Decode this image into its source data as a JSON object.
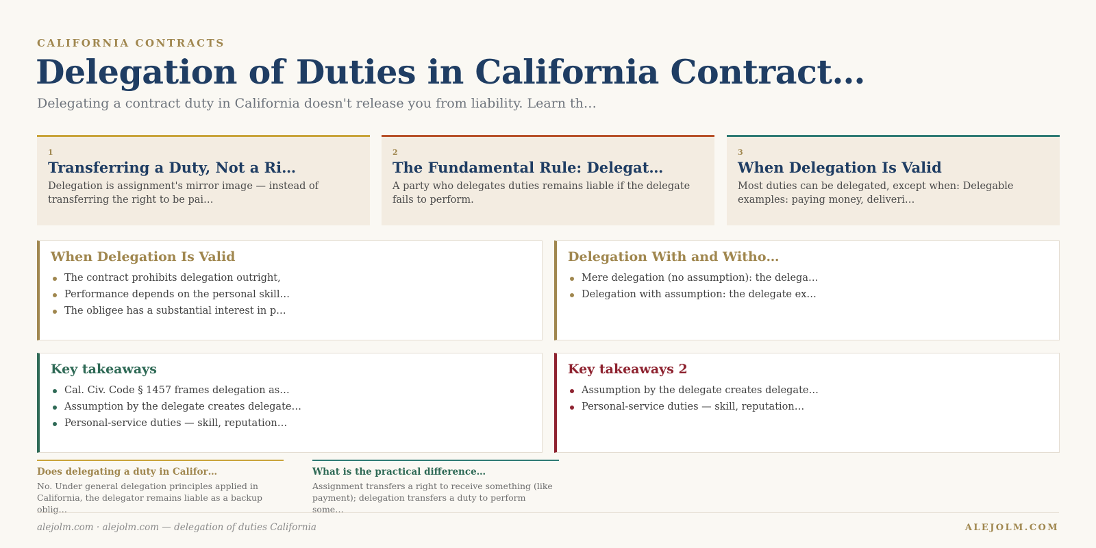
{
  "header": {
    "kicker": "CALIFORNIA CONTRACTS",
    "title": "Delegation of Duties in California Contract…",
    "subtitle": "Delegating a contract duty in California doesn't release you from liability. Learn th…"
  },
  "cards": [
    {
      "number": "1",
      "title": "Transferring a Duty, Not a Ri…",
      "body": "Delegation is assignment's mirror image — instead of transferring the right to be pai…",
      "accent": "#c9a43b"
    },
    {
      "number": "2",
      "title": "The Fundamental Rule: Delegat…",
      "body": "A party who delegates duties remains liable if the delegate fails to perform.",
      "accent": "#b8522a"
    },
    {
      "number": "3",
      "title": "When Delegation Is Valid",
      "body": "Most duties can be delegated, except when: Delegable examples: paying money, deliveri…",
      "accent": "#2f7b74"
    }
  ],
  "panels": [
    {
      "title": "When Delegation Is Valid",
      "accent": "#a0874f",
      "items": [
        "The contract prohibits delegation outright,",
        "Performance depends on the personal skill…",
        "The obligee has a substantial interest in p…"
      ]
    },
    {
      "title": "Delegation With and Witho…",
      "accent": "#a0874f",
      "items": [
        "Mere delegation (no assumption): the delega…",
        "Delegation with assumption: the delegate ex…"
      ]
    },
    {
      "title": "Key takeaways",
      "accent": "#2f6a56",
      "items": [
        "Cal. Civ. Code § 1457 frames delegation as…",
        "Assumption by the delegate creates delegate…",
        "Personal-service duties — skill, reputation…"
      ]
    },
    {
      "title": "Key takeaways 2",
      "accent": "#8e2330",
      "items": [
        "Assumption by the delegate creates delegate…",
        "Personal-service duties — skill, reputation…"
      ]
    }
  ],
  "faq": [
    {
      "question": "Does delegating a duty in Califor…",
      "answer": "No. Under general delegation principles applied in California, the delegator remains liable as a backup oblig…",
      "accent": "#c9a43b",
      "question_color": "#a0874f"
    },
    {
      "question": "What is the practical difference…",
      "answer": "Assignment transfers a right to receive something (like payment); delegation transfers a duty to perform some…",
      "accent": "#2f7b74",
      "question_color": "#2f6a56"
    }
  ],
  "footer": {
    "left": "alejolm.com · alejolm.com — delegation of duties California",
    "right": "ALEJOLM.COM"
  }
}
